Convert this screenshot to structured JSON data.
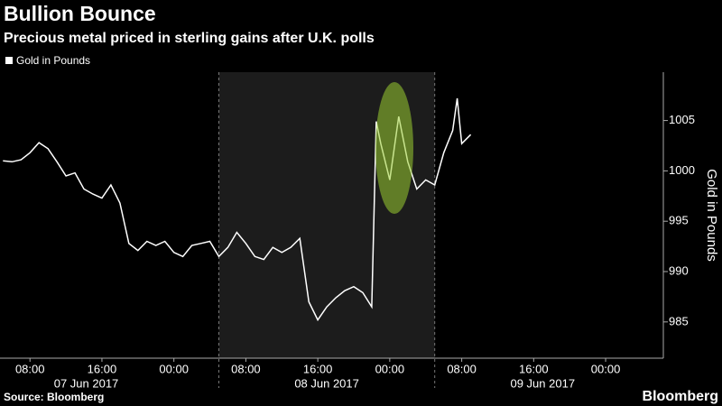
{
  "chart_data": {
    "type": "line",
    "title": "Bullion Bounce",
    "subtitle": "Precious metal priced in sterling gains after U.K. polls",
    "ylabel": "Gold in Pounds",
    "source": "Source: Bloomberg",
    "brand": "Bloomberg",
    "x": [
      "2017-06-07T05:00",
      "2017-06-07T06:00",
      "2017-06-07T07:00",
      "2017-06-07T08:00",
      "2017-06-07T09:00",
      "2017-06-07T10:00",
      "2017-06-07T11:00",
      "2017-06-07T12:00",
      "2017-06-07T13:00",
      "2017-06-07T14:00",
      "2017-06-07T15:00",
      "2017-06-07T16:00",
      "2017-06-07T17:00",
      "2017-06-07T18:00",
      "2017-06-07T19:00",
      "2017-06-07T20:00",
      "2017-06-07T21:00",
      "2017-06-07T22:00",
      "2017-06-07T23:00",
      "2017-06-08T00:00",
      "2017-06-08T01:00",
      "2017-06-08T02:00",
      "2017-06-08T03:00",
      "2017-06-08T04:00",
      "2017-06-08T05:00",
      "2017-06-08T06:00",
      "2017-06-08T07:00",
      "2017-06-08T08:00",
      "2017-06-08T09:00",
      "2017-06-08T10:00",
      "2017-06-08T11:00",
      "2017-06-08T12:00",
      "2017-06-08T13:00",
      "2017-06-08T14:00",
      "2017-06-08T15:00",
      "2017-06-08T16:00",
      "2017-06-08T17:00",
      "2017-06-08T18:00",
      "2017-06-08T19:00",
      "2017-06-08T20:00",
      "2017-06-08T21:00",
      "2017-06-08T22:00",
      "2017-06-08T22:30",
      "2017-06-08T23:00",
      "2017-06-09T00:00",
      "2017-06-09T01:00",
      "2017-06-09T02:00",
      "2017-06-09T03:00",
      "2017-06-09T04:00",
      "2017-06-09T05:00",
      "2017-06-09T06:00",
      "2017-06-09T07:00",
      "2017-06-09T07:30",
      "2017-06-09T08:00",
      "2017-06-09T09:00"
    ],
    "series": [
      {
        "name": "Gold in Pounds",
        "color": "#ffffff",
        "values": [
          1001.0,
          1000.9,
          1001.1,
          1001.8,
          1002.8,
          1002.2,
          1000.9,
          999.5,
          999.8,
          998.2,
          997.7,
          997.3,
          998.6,
          996.8,
          992.8,
          992.1,
          993.0,
          992.6,
          993.0,
          991.9,
          991.5,
          992.6,
          992.8,
          993.0,
          991.5,
          992.4,
          993.9,
          992.8,
          991.5,
          991.2,
          992.4,
          991.9,
          992.4,
          993.3,
          987.0,
          985.2,
          986.5,
          987.4,
          988.1,
          988.5,
          987.9,
          986.5,
          1004.9,
          1002.7,
          999.1,
          1005.4,
          1000.9,
          998.2,
          999.1,
          998.6,
          1001.8,
          1004.0,
          1007.2,
          1002.7,
          1003.6
        ]
      }
    ],
    "xlim": [
      "2017-06-07T04:40",
      "2017-06-10T06:25"
    ],
    "ylim": [
      981.4,
      1009.8
    ],
    "yticks": [
      985,
      990,
      995,
      1000,
      1005
    ],
    "xticks": [
      {
        "value": "2017-06-07T08:00",
        "label": "08:00"
      },
      {
        "value": "2017-06-07T16:00",
        "label": "16:00"
      },
      {
        "value": "2017-06-08T00:00",
        "label": "00:00"
      },
      {
        "value": "2017-06-08T08:00",
        "label": "08:00"
      },
      {
        "value": "2017-06-08T16:00",
        "label": "16:00"
      },
      {
        "value": "2017-06-09T00:00",
        "label": "00:00"
      },
      {
        "value": "2017-06-09T08:00",
        "label": "08:00"
      },
      {
        "value": "2017-06-09T16:00",
        "label": "16:00"
      },
      {
        "value": "2017-06-10T00:00",
        "label": "00:00"
      }
    ],
    "date_labels": [
      {
        "value": "2017-06-07T14:15",
        "label": "07 Jun 2017"
      },
      {
        "value": "2017-06-08T17:00",
        "label": "08 Jun 2017"
      },
      {
        "value": "2017-06-09T17:00",
        "label": "09 Jun 2017"
      }
    ],
    "shaded_range": [
      "2017-06-08T05:00",
      "2017-06-09T05:00"
    ]
  }
}
